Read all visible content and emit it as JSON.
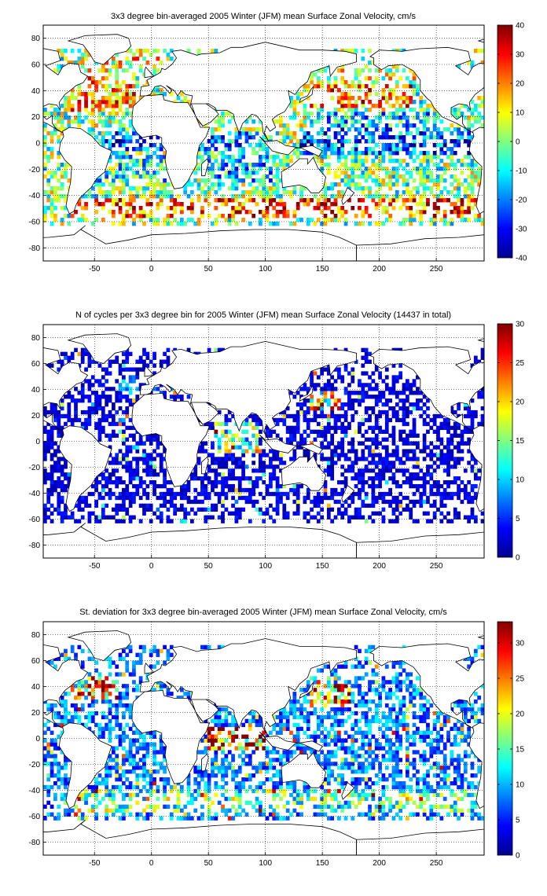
{
  "chart_data": [
    {
      "type": "heatmap",
      "title": "3x3 degree bin-averaged 2005 Winter (JFM) mean Surface Zonal Velocity, cm/s",
      "xlabel": "",
      "ylabel": "",
      "xlim": [
        -95,
        292
      ],
      "ylim": [
        -90,
        90
      ],
      "x_ticks": [
        "-50",
        "0",
        "50",
        "100",
        "150",
        "200",
        "250"
      ],
      "y_ticks": [
        "80",
        "60",
        "40",
        "20",
        "0",
        "-20",
        "-40",
        "-60",
        "-80"
      ],
      "grid": true,
      "bin_size_deg": 3,
      "colorbar": {
        "min": -40,
        "max": 40,
        "ticks": [
          "40",
          "30",
          "20",
          "10",
          "0",
          "-10",
          "-20",
          "-30",
          "-40"
        ],
        "colormap": "jet"
      },
      "regions": [
        {
          "lon": [
            -75,
            -15
          ],
          "lat": [
            25,
            50
          ],
          "value": 18
        },
        {
          "lon": [
            -60,
            -20
          ],
          "lat": [
            50,
            66
          ],
          "value": 8
        },
        {
          "lon": [
            -20,
            10
          ],
          "lat": [
            55,
            70
          ],
          "value": 12
        },
        {
          "lon": [
            140,
            230
          ],
          "lat": [
            28,
            45
          ],
          "value": 22
        },
        {
          "lon": [
            160,
            240
          ],
          "lat": [
            45,
            60
          ],
          "value": 6
        },
        {
          "lon": [
            -40,
            10
          ],
          "lat": [
            -5,
            8
          ],
          "value": -25
        },
        {
          "lon": [
            40,
            100
          ],
          "lat": [
            -5,
            10
          ],
          "value": -18
        },
        {
          "lon": [
            130,
            280
          ],
          "lat": [
            -8,
            12
          ],
          "value": -22
        },
        {
          "lon": [
            150,
            260
          ],
          "lat": [
            12,
            25
          ],
          "value": -15
        },
        {
          "lon": [
            -60,
            20
          ],
          "lat": [
            -30,
            -10
          ],
          "value": -8
        },
        {
          "lon": [
            50,
            110
          ],
          "lat": [
            -30,
            -8
          ],
          "value": -14
        },
        {
          "lon": [
            -70,
            290
          ],
          "lat": [
            -58,
            -42
          ],
          "value": 24
        }
      ]
    },
    {
      "type": "heatmap",
      "title": "N of cycles per 3x3 degree bin for 2005 Winter (JFM) mean Surface Zonal Velocity (14437 in total)",
      "xlabel": "",
      "ylabel": "",
      "xlim": [
        -95,
        292
      ],
      "ylim": [
        -90,
        90
      ],
      "x_ticks": [
        "-50",
        "0",
        "50",
        "100",
        "150",
        "200",
        "250"
      ],
      "y_ticks": [
        "80",
        "60",
        "40",
        "20",
        "0",
        "-20",
        "-40",
        "-60",
        "-80"
      ],
      "grid": true,
      "bin_size_deg": 3,
      "total_cycles": 14437,
      "colorbar": {
        "min": 0,
        "max": 30,
        "ticks": [
          "30",
          "25",
          "20",
          "15",
          "10",
          "5",
          "0"
        ],
        "colormap": "jet"
      },
      "regions": [
        {
          "lon": [
            -95,
            292
          ],
          "lat": [
            -62,
            65
          ],
          "value": 3
        },
        {
          "lon": [
            140,
            165
          ],
          "lat": [
            25,
            40
          ],
          "value": 20
        },
        {
          "lon": [
            55,
            95
          ],
          "lat": [
            -10,
            15
          ],
          "value": 14
        },
        {
          "lon": [
            -30,
            20
          ],
          "lat": [
            35,
            50
          ],
          "value": 7
        }
      ]
    },
    {
      "type": "heatmap",
      "title": "St. deviation for 3x3 degree bin-averaged 2005 Winter (JFM) mean Surface Zonal Velocity, cm/s",
      "xlabel": "",
      "ylabel": "",
      "xlim": [
        -95,
        292
      ],
      "ylim": [
        -90,
        90
      ],
      "x_ticks": [
        "-50",
        "0",
        "50",
        "100",
        "150",
        "200",
        "250"
      ],
      "y_ticks": [
        "80",
        "60",
        "40",
        "20",
        "0",
        "-20",
        "-40",
        "-60",
        "-80"
      ],
      "grid": true,
      "bin_size_deg": 3,
      "colorbar": {
        "min": 0,
        "max": 33,
        "ticks": [
          "30",
          "25",
          "20",
          "15",
          "10",
          "5",
          "0"
        ],
        "colormap": "jet"
      },
      "regions": [
        {
          "lon": [
            -95,
            292
          ],
          "lat": [
            -62,
            65
          ],
          "value": 8
        },
        {
          "lon": [
            140,
            175
          ],
          "lat": [
            25,
            42
          ],
          "value": 28
        },
        {
          "lon": [
            50,
            100
          ],
          "lat": [
            -8,
            10
          ],
          "value": 26
        },
        {
          "lon": [
            -75,
            -30
          ],
          "lat": [
            30,
            48
          ],
          "value": 22
        },
        {
          "lon": [
            -70,
            290
          ],
          "lat": [
            -56,
            -40
          ],
          "value": 14
        }
      ]
    }
  ]
}
